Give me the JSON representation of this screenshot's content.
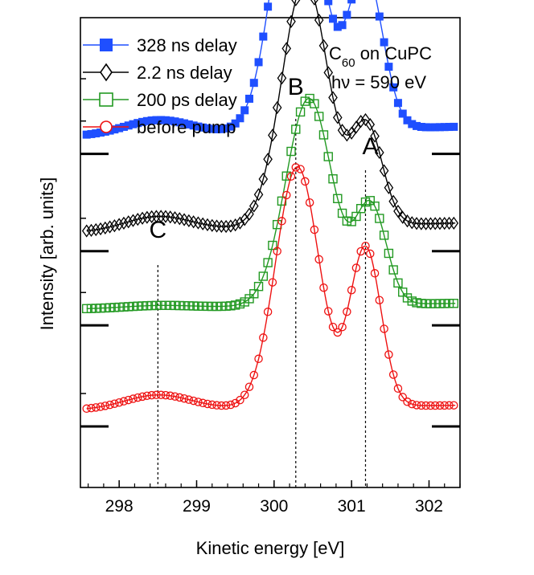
{
  "chart_data": {
    "type": "line",
    "title": "",
    "xlabel": "Kinetic energy [eV]",
    "ylabel": "Intensity [arb. units]",
    "xlim": [
      297.5,
      302.4
    ],
    "ylim": [
      0,
      1
    ],
    "x_ticks": [
      "298",
      "299",
      "300",
      "301",
      "302"
    ],
    "annotation_sample": "C60 on CuPC",
    "annotation_photon": "hν = 590 eV",
    "peaks": [
      {
        "label": "C",
        "x": 298.5
      },
      {
        "label": "B",
        "x": 300.28
      },
      {
        "label": "A",
        "x": 301.18
      }
    ],
    "series": [
      {
        "name": "328 ns delay",
        "color": "#1f4fff",
        "marker": "square-filled",
        "offset": 0.78,
        "params": {
          "b0": 0.018,
          "b1": 0.02,
          "B": [
            300.3,
            0.3,
            0.592
          ],
          "A": [
            301.18,
            0.22,
            0.332
          ],
          "C": [
            298.5,
            0.42,
            0.03
          ]
        }
      },
      {
        "name": "2.2 ns delay",
        "color": "#000000",
        "marker": "diamond-open",
        "offset": 0.573,
        "params": {
          "b0": 0.02,
          "b1": 0.02,
          "B": [
            300.4,
            0.3,
            0.524
          ],
          "A": [
            301.2,
            0.2,
            0.208
          ],
          "C": [
            298.5,
            0.42,
            0.03
          ]
        }
      },
      {
        "name": "200 ps delay",
        "color": "#229922",
        "marker": "square-open",
        "offset": 0.415,
        "params": {
          "b0": 0.015,
          "b1": 0.012,
          "B": [
            300.45,
            0.3,
            0.441
          ],
          "A": [
            301.25,
            0.2,
            0.208
          ],
          "C": [
            298.5,
            0.42,
            0.005
          ]
        }
      },
      {
        "name": "before pump",
        "color": "#ee1111",
        "marker": "circle-open",
        "offset": 0.2,
        "params": {
          "b0": 0.015,
          "b1": 0.01,
          "B": [
            300.3,
            0.28,
            0.512
          ],
          "A": [
            301.18,
            0.2,
            0.338
          ],
          "C": [
            298.5,
            0.42,
            0.03
          ]
        }
      }
    ]
  }
}
